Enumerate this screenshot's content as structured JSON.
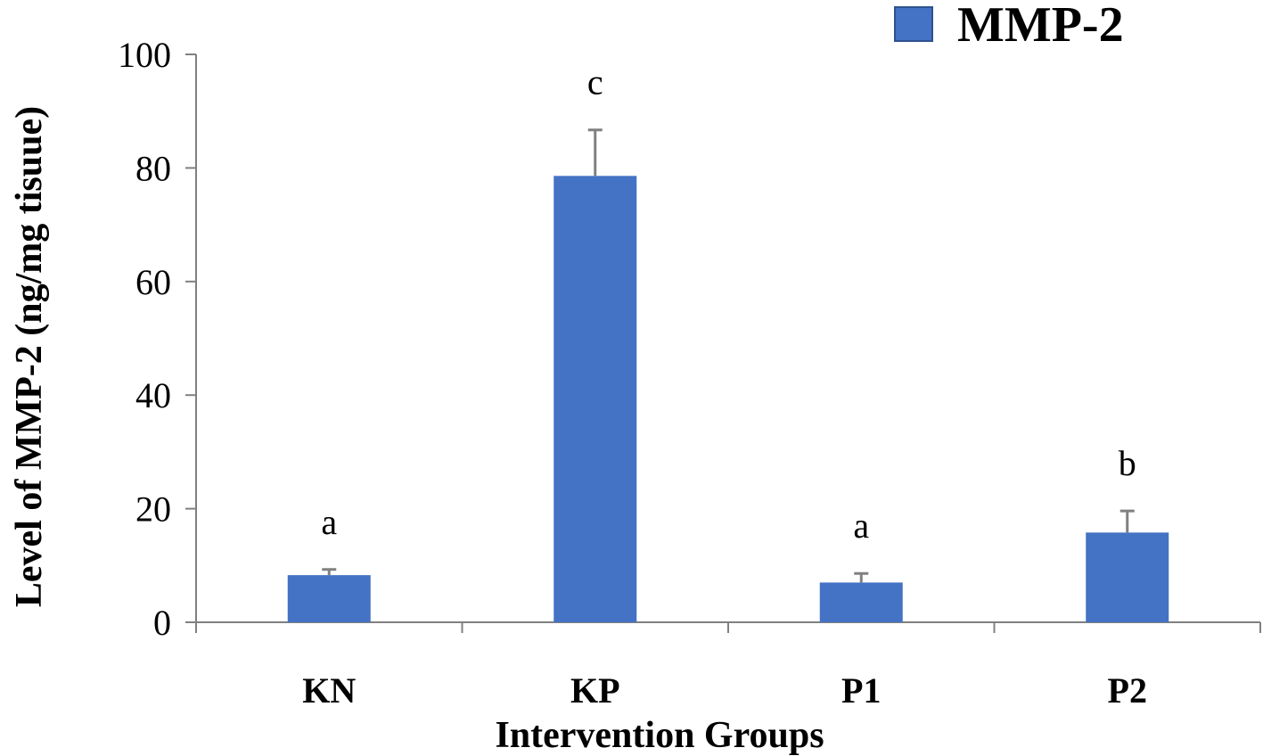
{
  "chart_data": {
    "type": "bar",
    "categories": [
      "KN",
      "KP",
      "P1",
      "P2"
    ],
    "series": [
      {
        "name": "MMP-2",
        "values": [
          8.3,
          78.6,
          7.0,
          15.8
        ],
        "errors": [
          1.0,
          8.1,
          1.6,
          3.8
        ],
        "color": "#4472C4"
      }
    ],
    "significance_labels": [
      "a",
      "c",
      "a",
      "b"
    ],
    "xlabel": "Intervention Groups",
    "ylabel": "Level of  MMP-2 (ng/mg tisuue)",
    "ylim": [
      0,
      100
    ],
    "yticks": [
      "0",
      "20",
      "40",
      "60",
      "80",
      "100"
    ],
    "legend": {
      "label": "MMP-2",
      "position": "top-right"
    },
    "grid": false
  }
}
